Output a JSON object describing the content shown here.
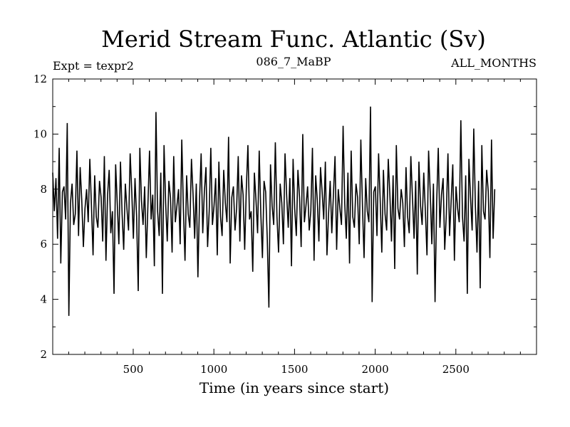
{
  "chart_data": {
    "type": "line",
    "title": "Merid Stream Func. Atlantic (Sv)",
    "subtitles": {
      "left": "Expt = texpr2",
      "center": "086_7_MaBP",
      "right": "ALL_MONTHS"
    },
    "xlabel": "Time (in years since start)",
    "ylabel": "",
    "xlim": [
      1,
      3000
    ],
    "ylim": [
      2,
      12
    ],
    "x_ticks": [
      500,
      1000,
      1500,
      2000,
      2500
    ],
    "x_tick_labels": [
      "500",
      "1000",
      "1500",
      "2000",
      "2500"
    ],
    "y_ticks": [
      2,
      4,
      6,
      8,
      10,
      12
    ],
    "y_tick_labels": [
      "2",
      "4",
      "6",
      "8",
      "10",
      "12"
    ],
    "line_color": "#000000",
    "grid": false,
    "series": [
      {
        "x_start": 1,
        "x_step": 10,
        "values": [
          8.6,
          7.2,
          8.4,
          6.2,
          9.5,
          5.3,
          7.9,
          8.1,
          6.9,
          10.4,
          3.4,
          7.5,
          8.2,
          6.7,
          7.1,
          9.4,
          6.3,
          8.8,
          7.6,
          5.9,
          7.3,
          8.0,
          6.8,
          9.1,
          7.4,
          5.6,
          8.5,
          7.0,
          6.6,
          8.3,
          7.7,
          6.1,
          9.2,
          5.4,
          7.8,
          8.7,
          6.4,
          7.2,
          4.2,
          8.9,
          7.5,
          6.0,
          9.0,
          7.1,
          5.8,
          8.2,
          7.3,
          6.5,
          9.3,
          7.9,
          6.2,
          8.4,
          7.0,
          4.3,
          9.5,
          7.6,
          6.7,
          8.1,
          5.5,
          7.4,
          9.4,
          6.9,
          7.8,
          5.2,
          10.8,
          7.2,
          6.3,
          8.6,
          4.2,
          9.6,
          7.5,
          6.1,
          8.3,
          7.7,
          5.7,
          9.2,
          6.8,
          7.4,
          8.0,
          6.0,
          9.8,
          7.3,
          5.4,
          8.5,
          7.1,
          6.6,
          9.1,
          7.8,
          6.2,
          8.2,
          4.8,
          7.6,
          9.3,
          6.4,
          7.9,
          8.8,
          5.9,
          7.2,
          9.5,
          6.7,
          7.4,
          8.4,
          5.6,
          9.0,
          7.0,
          6.3,
          8.7,
          7.5,
          6.8,
          9.9,
          5.3,
          7.7,
          8.1,
          6.5,
          7.3,
          9.2,
          6.1,
          8.5,
          7.8,
          5.8,
          8.0,
          9.6,
          6.9,
          7.2,
          5.0,
          8.6,
          7.6,
          6.4,
          9.4,
          7.1,
          5.5,
          8.3,
          7.9,
          6.2,
          3.7,
          8.9,
          7.4,
          6.7,
          9.7,
          7.0,
          5.7,
          8.2,
          7.5,
          6.0,
          9.3,
          7.8,
          6.6,
          8.4,
          5.2,
          9.1,
          7.3,
          6.3,
          8.7,
          7.7,
          5.9,
          10.0,
          6.8,
          7.4,
          8.1,
          6.5,
          7.2,
          9.5,
          5.4,
          8.5,
          7.6,
          6.1,
          8.8,
          7.9,
          6.9,
          9.0,
          5.6,
          7.1,
          8.3,
          6.4,
          7.8,
          9.2,
          5.8,
          8.0,
          7.3,
          6.7,
          10.3,
          7.5,
          6.2,
          8.6,
          5.3,
          9.4,
          7.0,
          6.6,
          8.2,
          7.7,
          6.0,
          9.8,
          7.4,
          5.5,
          8.4,
          7.2,
          6.8,
          11.0,
          3.9,
          7.9,
          8.1,
          6.3,
          9.3,
          7.6,
          5.7,
          8.7,
          7.1,
          6.5,
          9.1,
          7.8,
          6.1,
          8.5,
          5.1,
          9.6,
          7.3,
          6.9,
          8.0,
          7.5,
          5.9,
          8.8,
          7.0,
          6.4,
          9.2,
          7.7,
          6.2,
          8.3,
          4.9,
          9.0,
          7.4,
          6.7,
          8.6,
          7.2,
          5.6,
          9.4,
          7.9,
          6.0,
          8.2,
          3.9,
          7.5,
          9.5,
          6.6,
          7.8,
          8.4,
          5.8,
          7.1,
          9.3,
          6.3,
          7.6,
          8.9,
          5.4,
          8.1,
          7.3,
          6.8,
          10.5,
          7.0,
          6.1,
          8.5,
          4.2,
          9.1,
          7.7,
          6.5,
          10.2,
          7.4,
          5.7,
          8.3,
          4.4,
          9.6,
          7.2,
          6.9,
          8.7,
          7.9,
          5.5,
          9.8,
          6.2,
          8.0
        ]
      }
    ]
  }
}
